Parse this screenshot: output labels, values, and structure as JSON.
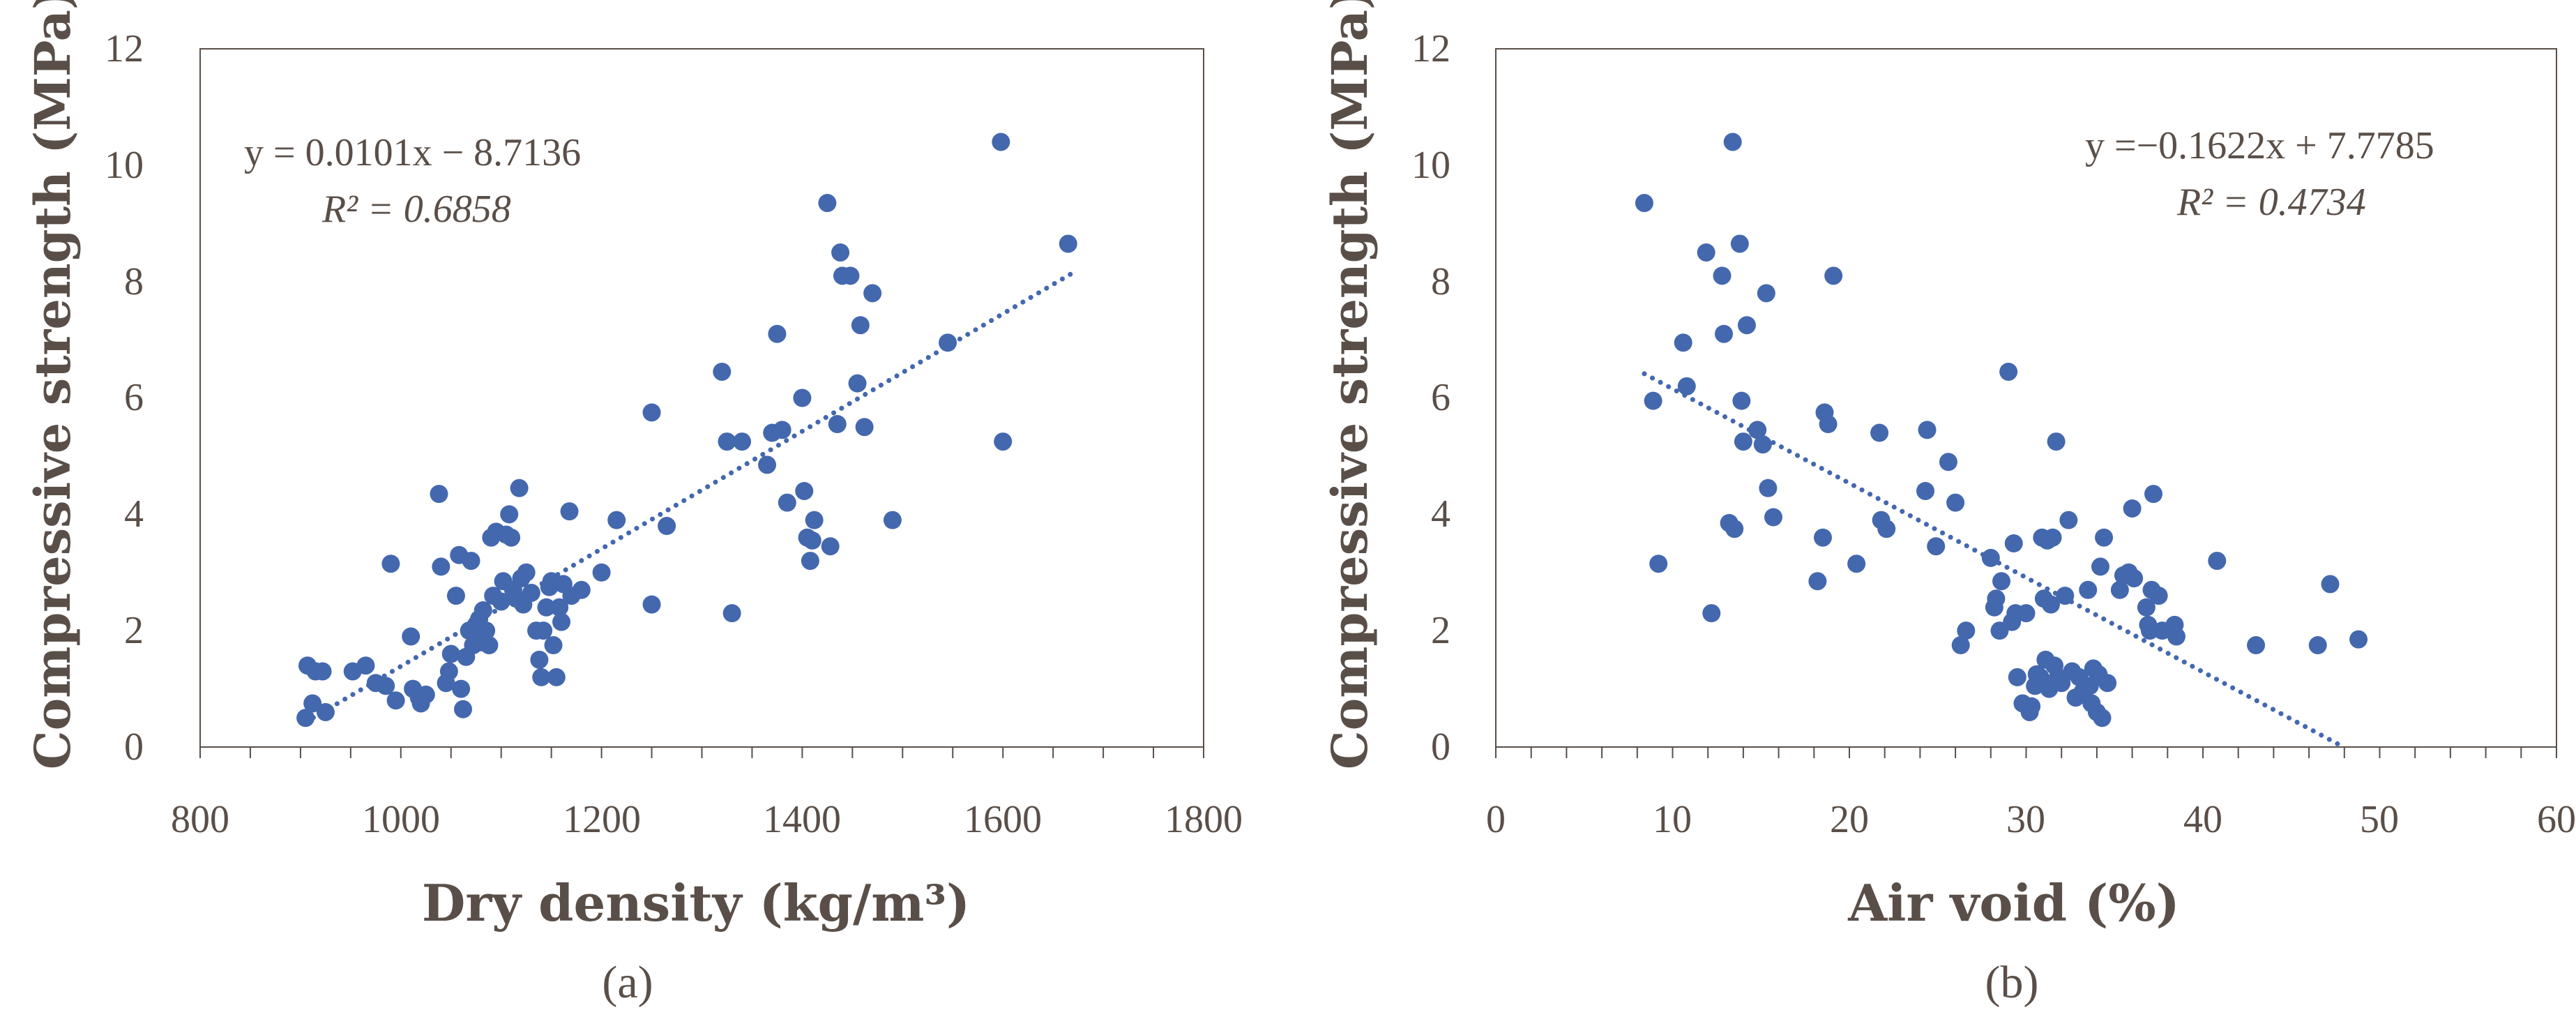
{
  "colors": {
    "marker": "#4468ae",
    "text": "#5a4f48",
    "axis": "#5a4f48"
  },
  "chart_data": [
    {
      "type": "scatter",
      "caption": "(a)",
      "xlabel": "Dry density (kg/m³)",
      "ylabel": "Compressive strength (MPa)",
      "xlim": [
        800,
        1800
      ],
      "ylim": [
        0,
        12
      ],
      "xticks": [
        "800",
        "1000",
        "1200",
        "1400",
        "1600",
        "1800"
      ],
      "yticks": [
        "0",
        "2",
        "4",
        "6",
        "8",
        "10",
        "12"
      ],
      "xtick_values": [
        800,
        1000,
        1200,
        1400,
        1600,
        1800
      ],
      "ytick_values": [
        0,
        2,
        4,
        6,
        8,
        10,
        12
      ],
      "minor_step": 50,
      "equation": "y = 0.0101x − 8.7136",
      "r2_label": "R² = 0.6858",
      "trendline": {
        "slope": 0.0101,
        "intercept": -8.7136,
        "x_range": [
          905,
          1670
        ]
      },
      "points": [
        [
          905,
          0.5
        ],
        [
          907,
          1.4
        ],
        [
          912,
          0.75
        ],
        [
          915,
          1.3
        ],
        [
          922,
          1.3
        ],
        [
          925,
          0.6
        ],
        [
          952,
          1.3
        ],
        [
          965,
          1.4
        ],
        [
          975,
          1.1
        ],
        [
          985,
          1.05
        ],
        [
          990,
          3.15
        ],
        [
          995,
          0.8
        ],
        [
          1010,
          1.9
        ],
        [
          1012,
          1.0
        ],
        [
          1018,
          0.85
        ],
        [
          1020,
          0.75
        ],
        [
          1025,
          0.9
        ],
        [
          1038,
          4.35
        ],
        [
          1040,
          3.1
        ],
        [
          1045,
          1.1
        ],
        [
          1048,
          1.3
        ],
        [
          1050,
          1.6
        ],
        [
          1055,
          2.6
        ],
        [
          1058,
          3.3
        ],
        [
          1060,
          1.0
        ],
        [
          1062,
          0.65
        ],
        [
          1065,
          1.55
        ],
        [
          1068,
          2.0
        ],
        [
          1070,
          3.2
        ],
        [
          1072,
          1.75
        ],
        [
          1075,
          2.1
        ],
        [
          1078,
          2.2
        ],
        [
          1080,
          1.8
        ],
        [
          1082,
          2.35
        ],
        [
          1085,
          2.0
        ],
        [
          1088,
          1.75
        ],
        [
          1090,
          3.6
        ],
        [
          1092,
          2.6
        ],
        [
          1095,
          3.7
        ],
        [
          1100,
          2.5
        ],
        [
          1102,
          2.85
        ],
        [
          1105,
          3.65
        ],
        [
          1108,
          4.0
        ],
        [
          1110,
          3.6
        ],
        [
          1112,
          2.7
        ],
        [
          1115,
          2.55
        ],
        [
          1118,
          4.45
        ],
        [
          1120,
          2.9
        ],
        [
          1122,
          2.45
        ],
        [
          1125,
          3.0
        ],
        [
          1130,
          2.65
        ],
        [
          1135,
          2.0
        ],
        [
          1138,
          1.5
        ],
        [
          1140,
          1.2
        ],
        [
          1142,
          2.0
        ],
        [
          1145,
          2.4
        ],
        [
          1148,
          2.75
        ],
        [
          1150,
          2.85
        ],
        [
          1152,
          1.75
        ],
        [
          1155,
          1.2
        ],
        [
          1158,
          2.4
        ],
        [
          1160,
          2.15
        ],
        [
          1162,
          2.8
        ],
        [
          1168,
          4.05
        ],
        [
          1170,
          2.6
        ],
        [
          1180,
          2.7
        ],
        [
          1200,
          3.0
        ],
        [
          1215,
          3.9
        ],
        [
          1250,
          5.75
        ],
        [
          1250,
          2.45
        ],
        [
          1265,
          3.8
        ],
        [
          1320,
          6.45
        ],
        [
          1325,
          5.25
        ],
        [
          1330,
          2.3
        ],
        [
          1340,
          5.25
        ],
        [
          1365,
          4.85
        ],
        [
          1370,
          5.4
        ],
        [
          1375,
          7.1
        ],
        [
          1380,
          5.45
        ],
        [
          1385,
          4.2
        ],
        [
          1400,
          6.0
        ],
        [
          1402,
          4.4
        ],
        [
          1405,
          3.6
        ],
        [
          1408,
          3.2
        ],
        [
          1410,
          3.55
        ],
        [
          1412,
          3.9
        ],
        [
          1425,
          9.35
        ],
        [
          1428,
          3.45
        ],
        [
          1435,
          5.55
        ],
        [
          1438,
          8.5
        ],
        [
          1440,
          8.1
        ],
        [
          1448,
          8.1
        ],
        [
          1455,
          6.25
        ],
        [
          1458,
          7.25
        ],
        [
          1462,
          5.5
        ],
        [
          1470,
          7.8
        ],
        [
          1490,
          3.9
        ],
        [
          1545,
          6.95
        ],
        [
          1598,
          10.4
        ],
        [
          1600,
          5.25
        ],
        [
          1665,
          8.65
        ]
      ]
    },
    {
      "type": "scatter",
      "caption": "(b)",
      "xlabel": "Air void (%)",
      "ylabel": "Compressive strength (MPa)",
      "xlim": [
        0,
        60
      ],
      "ylim": [
        0,
        12
      ],
      "xticks": [
        "0",
        "10",
        "20",
        "30",
        "40",
        "50",
        "60"
      ],
      "yticks": [
        "0",
        "2",
        "4",
        "6",
        "8",
        "10",
        "12"
      ],
      "xtick_values": [
        0,
        10,
        20,
        30,
        40,
        50,
        60
      ],
      "ytick_values": [
        0,
        2,
        4,
        6,
        8,
        10,
        12
      ],
      "minor_step": 2,
      "equation": "y =−0.1622x + 7.7785",
      "r2_label": "R² = 0.4734",
      "trendline": {
        "slope": -0.1622,
        "intercept": 7.7785,
        "x_range": [
          8.4,
          48.0
        ]
      },
      "points": [
        [
          8.4,
          9.35
        ],
        [
          8.9,
          5.95
        ],
        [
          9.2,
          3.15
        ],
        [
          10.6,
          6.95
        ],
        [
          10.8,
          6.2
        ],
        [
          11.9,
          8.5
        ],
        [
          12.2,
          2.3
        ],
        [
          12.8,
          8.1
        ],
        [
          12.9,
          7.1
        ],
        [
          13.2,
          3.85
        ],
        [
          13.4,
          10.4
        ],
        [
          13.5,
          3.75
        ],
        [
          13.8,
          8.65
        ],
        [
          13.9,
          5.95
        ],
        [
          14.0,
          5.25
        ],
        [
          14.2,
          7.25
        ],
        [
          14.8,
          5.45
        ],
        [
          15.1,
          5.2
        ],
        [
          15.3,
          7.8
        ],
        [
          15.4,
          4.45
        ],
        [
          15.7,
          3.95
        ],
        [
          18.2,
          2.85
        ],
        [
          18.5,
          3.6
        ],
        [
          18.6,
          5.75
        ],
        [
          18.8,
          5.55
        ],
        [
          19.1,
          8.1
        ],
        [
          20.4,
          3.15
        ],
        [
          21.7,
          5.4
        ],
        [
          21.8,
          3.9
        ],
        [
          22.1,
          3.75
        ],
        [
          24.3,
          4.4
        ],
        [
          24.4,
          5.45
        ],
        [
          24.9,
          3.45
        ],
        [
          25.6,
          4.9
        ],
        [
          26.0,
          4.2
        ],
        [
          26.3,
          1.75
        ],
        [
          26.6,
          2.0
        ],
        [
          28.0,
          3.25
        ],
        [
          28.2,
          2.4
        ],
        [
          28.3,
          2.55
        ],
        [
          28.5,
          2.0
        ],
        [
          28.6,
          2.85
        ],
        [
          29.0,
          6.45
        ],
        [
          29.2,
          2.15
        ],
        [
          29.3,
          3.5
        ],
        [
          29.4,
          2.3
        ],
        [
          29.5,
          1.2
        ],
        [
          29.8,
          0.75
        ],
        [
          30.0,
          2.3
        ],
        [
          30.2,
          0.6
        ],
        [
          30.3,
          0.7
        ],
        [
          30.5,
          1.05
        ],
        [
          30.6,
          1.25
        ],
        [
          30.8,
          1.2
        ],
        [
          30.9,
          3.6
        ],
        [
          31.0,
          2.55
        ],
        [
          31.1,
          1.5
        ],
        [
          31.2,
          3.55
        ],
        [
          31.3,
          1.0
        ],
        [
          31.4,
          2.45
        ],
        [
          31.5,
          3.6
        ],
        [
          31.6,
          1.4
        ],
        [
          31.7,
          5.25
        ],
        [
          31.8,
          1.2
        ],
        [
          32.0,
          1.1
        ],
        [
          32.2,
          2.6
        ],
        [
          32.4,
          3.9
        ],
        [
          32.6,
          1.3
        ],
        [
          32.8,
          0.85
        ],
        [
          33.0,
          1.2
        ],
        [
          33.2,
          0.95
        ],
        [
          33.5,
          2.7
        ],
        [
          33.6,
          1.05
        ],
        [
          33.7,
          0.75
        ],
        [
          33.8,
          1.35
        ],
        [
          34.0,
          0.6
        ],
        [
          34.1,
          1.25
        ],
        [
          34.2,
          3.1
        ],
        [
          34.3,
          0.5
        ],
        [
          34.4,
          3.6
        ],
        [
          34.6,
          1.1
        ],
        [
          35.3,
          2.7
        ],
        [
          35.5,
          2.95
        ],
        [
          35.8,
          3.0
        ],
        [
          36.0,
          4.1
        ],
        [
          36.1,
          2.9
        ],
        [
          36.8,
          2.4
        ],
        [
          36.9,
          2.1
        ],
        [
          37.0,
          2.0
        ],
        [
          37.1,
          2.7
        ],
        [
          37.2,
          4.35
        ],
        [
          37.5,
          2.6
        ],
        [
          37.7,
          2.0
        ],
        [
          38.4,
          2.1
        ],
        [
          38.5,
          1.9
        ],
        [
          40.8,
          3.2
        ],
        [
          43.0,
          1.75
        ],
        [
          46.5,
          1.75
        ],
        [
          47.2,
          2.8
        ],
        [
          48.8,
          1.85
        ]
      ]
    }
  ]
}
